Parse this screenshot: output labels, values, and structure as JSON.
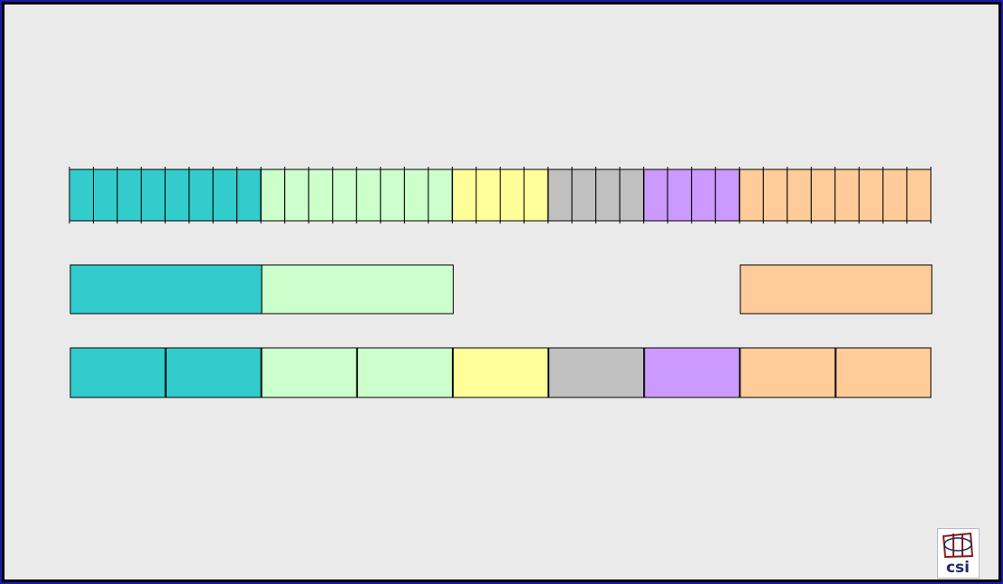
{
  "colors": {
    "background": "#eaeaea",
    "frame": "#1a1aa8",
    "teal": "#33cccc",
    "light_green": "#ccffcc",
    "yellow": "#ffff99",
    "gray": "#c0c0c0",
    "lavender": "#cc99ff",
    "peach": "#ffcc99",
    "outline": "#000000"
  },
  "rows": {
    "segmented": [
      {
        "color": "teal",
        "cells": 8
      },
      {
        "color": "light_green",
        "cells": 8
      },
      {
        "color": "yellow",
        "cells": 4
      },
      {
        "color": "gray",
        "cells": 4
      },
      {
        "color": "lavender",
        "cells": 4
      },
      {
        "color": "peach",
        "cells": 8
      }
    ],
    "merged": [
      {
        "color": "teal",
        "start_cell": 0,
        "cells": 8
      },
      {
        "color": "light_green",
        "start_cell": 8,
        "cells": 8
      },
      {
        "color": "peach",
        "start_cell": 28,
        "cells": 8
      }
    ],
    "blocks": [
      {
        "color": "teal"
      },
      {
        "color": "teal"
      },
      {
        "color": "light_green"
      },
      {
        "color": "light_green"
      },
      {
        "color": "yellow"
      },
      {
        "color": "gray"
      },
      {
        "color": "lavender"
      },
      {
        "color": "peach"
      },
      {
        "color": "peach"
      }
    ]
  },
  "logo": {
    "text": "csi",
    "icon": "csi-logo-icon",
    "accent": "#8b1a1a",
    "text_color": "#1c2a6b"
  }
}
